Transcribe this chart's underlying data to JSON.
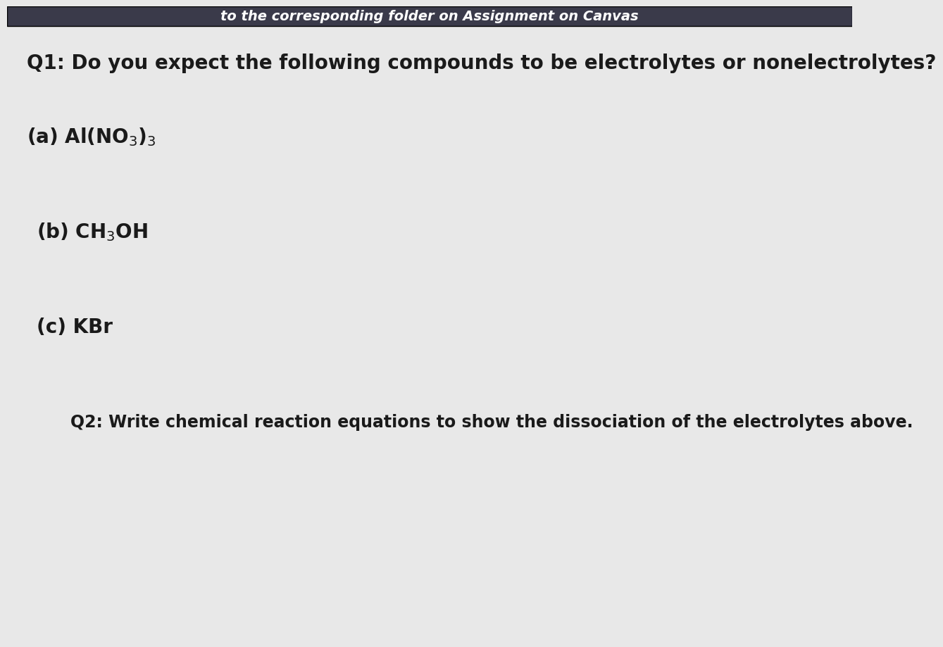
{
  "background_color": "#e8e8e8",
  "top_bar_color": "#3a3a4a",
  "top_bar_text": "to the corresponding folder on Assignment on Canvas",
  "top_bar_text_color": "#ffffff",
  "q1_text": "Q1: Do you expect the following compounds to be electrolytes or nonelectrolytes?",
  "a_formula": "(a) Al(NO$_3$)$_3$",
  "b_formula": "(b) CH$_3$OH",
  "c_formula": "(c) KBr",
  "q2_text": "Q2: Write chemical reaction equations to show the dissociation of the electrolytes above.",
  "text_color": "#1a1a1a",
  "font_size_q1": 20,
  "font_size_items": 20,
  "font_size_q2": 17
}
